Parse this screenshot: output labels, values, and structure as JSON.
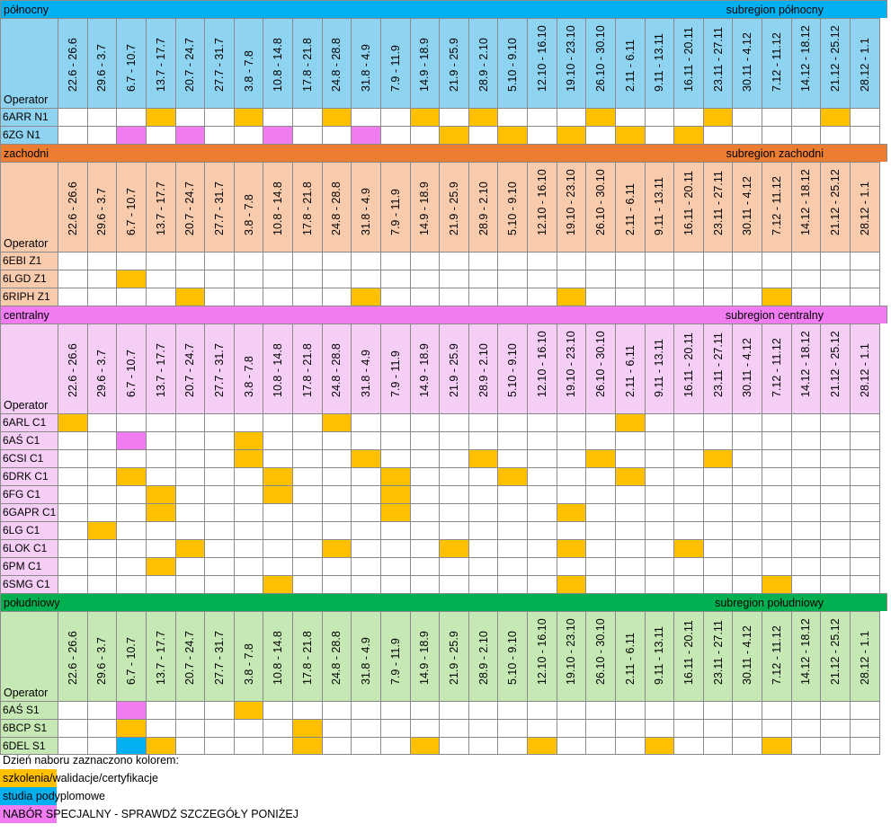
{
  "header_operator": "Operator",
  "dates": [
    "22.6 - 26.6",
    "29.6 - 3.7",
    "6.7 - 10.7",
    "13.7 - 17.7",
    "20.7 - 24.7",
    "27.7 - 31.7",
    "3.8 - 7.8",
    "10.8 - 14.8",
    "17.8 - 21.8",
    "24.8 - 28.8",
    "31.8 - 4.9",
    "7.9 - 11.9",
    "14.9 - 18.9",
    "21.9 - 25.9",
    "28.9 - 2.10",
    "5.10 - 9.10",
    "12.10 - 16.10",
    "19.10 - 23.10",
    "26.10 - 30.10",
    "2.11 - 6.11",
    "9.11 - 13.11",
    "16.11 - 20.11",
    "23.11 - 27.11",
    "30.11 - 4.12",
    "7.12 - 11.12",
    "14.12 - 18.12",
    "21.12 - 25.12",
    "28.12 - 1.1"
  ],
  "colors": {
    "orange": "#ffc000",
    "blue": "#00b0f0",
    "pink": "#f17bf1"
  },
  "regions": [
    {
      "name": "północny",
      "subregion": "subregion północny",
      "band_color": "#00b0f0",
      "header_color": "#8ed3f0",
      "rows": [
        {
          "operator": "6ARR N1",
          "marks": {
            "3": "orange",
            "6": "orange",
            "9": "orange",
            "12": "orange",
            "14": "orange",
            "18": "orange",
            "22": "orange",
            "26": "orange"
          }
        },
        {
          "operator": "6ZG N1",
          "marks": {
            "2": "pink",
            "4": "pink",
            "7": "pink",
            "10": "pink",
            "13": "orange",
            "15": "orange",
            "17": "orange",
            "19": "orange",
            "21": "orange"
          }
        }
      ]
    },
    {
      "name": "zachodni",
      "subregion": "subregion zachodni",
      "band_color": "#ed7d31",
      "header_color": "#f8cbad",
      "rows": [
        {
          "operator": "6EBI Z1",
          "marks": {}
        },
        {
          "operator": "6LGD Z1",
          "marks": {
            "2": "orange"
          }
        },
        {
          "operator": "6RIPH Z1",
          "marks": {
            "4": "orange",
            "10": "orange",
            "17": "orange",
            "24": "orange"
          }
        }
      ]
    },
    {
      "name": "centralny",
      "subregion": "subregion centralny",
      "band_color": "#f17bf1",
      "header_color": "#f4cef4",
      "rows": [
        {
          "operator": "6ARL C1",
          "marks": {
            "0": "orange",
            "9": "orange",
            "19": "orange"
          }
        },
        {
          "operator": "6AŚ C1",
          "marks": {
            "2": "pink",
            "6": "orange"
          }
        },
        {
          "operator": "6CSI C1",
          "marks": {
            "6": "orange",
            "10": "orange",
            "14": "orange",
            "18": "orange",
            "22": "orange"
          }
        },
        {
          "operator": "6DRK C1",
          "marks": {
            "2": "orange",
            "7": "orange",
            "11": "orange",
            "15": "orange",
            "19": "orange"
          }
        },
        {
          "operator": "6FG C1",
          "marks": {
            "3": "orange",
            "7": "orange",
            "11": "orange"
          }
        },
        {
          "operator": "6GAPR C1",
          "marks": {
            "3": "orange",
            "11": "orange",
            "17": "orange"
          }
        },
        {
          "operator": "6LG C1",
          "marks": {
            "1": "orange"
          }
        },
        {
          "operator": "6LOK C1",
          "marks": {
            "4": "orange",
            "9": "orange",
            "13": "orange",
            "17": "orange",
            "21": "orange"
          }
        },
        {
          "operator": "6PM C1",
          "marks": {
            "3": "orange"
          }
        },
        {
          "operator": "6SMG C1",
          "marks": {
            "7": "orange",
            "17": "orange",
            "24": "orange"
          }
        }
      ]
    },
    {
      "name": "południowy",
      "subregion": "subregion południowy",
      "band_color": "#00b050",
      "header_color": "#c6e8b4",
      "rows": [
        {
          "operator": "6AŚ S1",
          "marks": {
            "2": "pink",
            "6": "orange"
          }
        },
        {
          "operator": "6BCP S1",
          "marks": {
            "2": "orange",
            "8": "orange"
          }
        },
        {
          "operator": "6DEL S1",
          "marks": {
            "2": "blue",
            "3": "orange",
            "8": "orange",
            "12": "orange",
            "16": "orange",
            "20": "orange",
            "24": "orange"
          }
        }
      ]
    }
  ],
  "legend": {
    "title": "Dzień naboru zaznaczono kolorem:",
    "items": [
      {
        "label": "szkolenia/walidacje/certyfikacje",
        "color": "orange"
      },
      {
        "label": "studia podyplomowe",
        "color": "blue"
      },
      {
        "label": "NABÓR SPECJALNY - SPRAWDŹ SZCZEGÓŁY PONIŻEJ",
        "color": "pink"
      }
    ]
  }
}
